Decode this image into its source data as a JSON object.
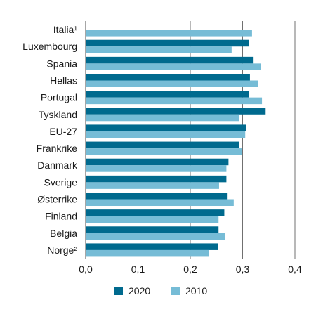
{
  "chart_data": {
    "type": "bar",
    "orientation": "horizontal",
    "categories": [
      "Italia¹",
      "Luxembourg",
      "Spania",
      "Hellas",
      "Portugal",
      "Tyskland",
      "EU-27",
      "Frankrike",
      "Danmark",
      "Sverige",
      "Østerrike",
      "Finland",
      "Belgia",
      "Norge²"
    ],
    "series": [
      {
        "name": "2020",
        "color": "#006a8e",
        "values": [
          null,
          0.312,
          0.321,
          0.314,
          0.312,
          0.344,
          0.307,
          0.293,
          0.273,
          0.269,
          0.27,
          0.265,
          0.254,
          0.253
        ]
      },
      {
        "name": "2010",
        "color": "#76bcd6",
        "values": [
          0.318,
          0.279,
          0.335,
          0.329,
          0.337,
          0.293,
          0.305,
          0.298,
          0.269,
          0.255,
          0.283,
          0.254,
          0.266,
          0.236
        ]
      }
    ],
    "xlim": [
      0,
      0.4
    ],
    "xticks": [
      0,
      0.1,
      0.2,
      0.3,
      0.4
    ],
    "xtick_labels": [
      "0,0",
      "0,1",
      "0,2",
      "0,3",
      "0,4"
    ],
    "grid": "vertical",
    "legend_position": "bottom"
  }
}
